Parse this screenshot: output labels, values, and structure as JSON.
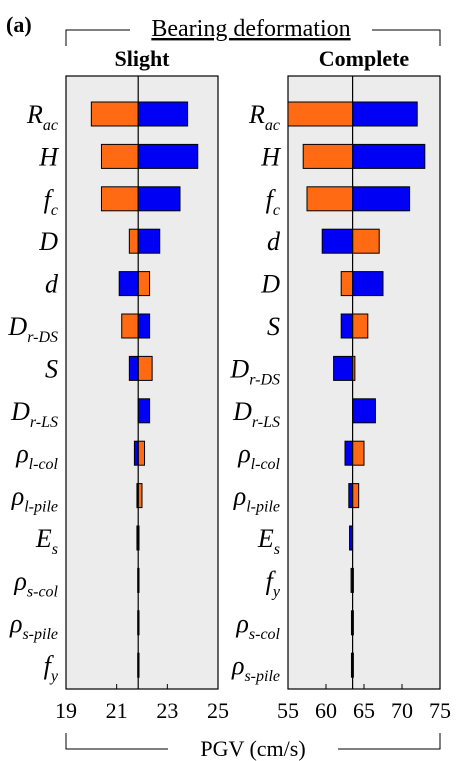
{
  "figure": {
    "panel_label": "(a)",
    "title": "Bearing deformation",
    "xlabel": "PGV (cm/s)"
  },
  "colors": {
    "low": "#ff6a13",
    "high": "#0000f5",
    "panel_bg": "#ececec",
    "outline": "#000000"
  },
  "chart_data": [
    {
      "type": "bar",
      "subtype": "tornado",
      "title": "Slight",
      "base": 21.85,
      "xlim": [
        19,
        25
      ],
      "xticks": [
        19,
        21,
        23,
        25
      ],
      "grid": false,
      "parameters": [
        {
          "name": "R",
          "sub": "ac",
          "low_side": "orange",
          "min": 20.0,
          "max": 23.8
        },
        {
          "name": "H",
          "sub": "",
          "low_side": "orange",
          "min": 20.4,
          "max": 24.2
        },
        {
          "name": "f",
          "sub": "c",
          "low_side": "orange",
          "min": 20.4,
          "max": 23.5
        },
        {
          "name": "D",
          "sub": "",
          "low_side": "orange",
          "min": 21.5,
          "max": 22.7
        },
        {
          "name": "d",
          "sub": "",
          "low_side": "blue",
          "min": 21.1,
          "max": 22.3
        },
        {
          "name": "D",
          "sub": "r-DS",
          "low_side": "orange",
          "min": 21.2,
          "max": 22.3
        },
        {
          "name": "S",
          "sub": "",
          "low_side": "blue",
          "min": 21.5,
          "max": 22.4
        },
        {
          "name": "D",
          "sub": "r-LS",
          "low_side": "orange",
          "min": 21.85,
          "max": 22.3
        },
        {
          "name": "ρ",
          "sub": "l-col",
          "low_side": "blue",
          "min": 21.7,
          "max": 22.1
        },
        {
          "name": "ρ",
          "sub": "l-pile",
          "low_side": "blue",
          "min": 21.8,
          "max": 22.0
        },
        {
          "name": "E",
          "sub": "s",
          "low_side": "blue",
          "min": 21.8,
          "max": 21.87
        },
        {
          "name": "ρ",
          "sub": "s-col",
          "low_side": "blue",
          "min": 21.83,
          "max": 21.86
        },
        {
          "name": "ρ",
          "sub": "s-pile",
          "low_side": "blue",
          "min": 21.83,
          "max": 21.86
        },
        {
          "name": "f",
          "sub": "y",
          "low_side": "blue",
          "min": 21.83,
          "max": 21.86
        }
      ]
    },
    {
      "type": "bar",
      "subtype": "tornado",
      "title": "Complete",
      "base": 63.5,
      "xlim": [
        55,
        75
      ],
      "xticks": [
        55,
        60,
        65,
        70,
        75
      ],
      "grid": false,
      "parameters": [
        {
          "name": "R",
          "sub": "ac",
          "low_side": "orange",
          "min": 55.0,
          "max": 72.0
        },
        {
          "name": "H",
          "sub": "",
          "low_side": "orange",
          "min": 57.0,
          "max": 73.0
        },
        {
          "name": "f",
          "sub": "c",
          "low_side": "orange",
          "min": 57.5,
          "max": 71.0
        },
        {
          "name": "d",
          "sub": "",
          "low_side": "blue",
          "min": 59.5,
          "max": 67.0
        },
        {
          "name": "D",
          "sub": "",
          "low_side": "orange",
          "min": 62.0,
          "max": 67.5
        },
        {
          "name": "S",
          "sub": "",
          "low_side": "blue",
          "min": 62.0,
          "max": 65.5
        },
        {
          "name": "D",
          "sub": "r-DS",
          "low_side": "blue",
          "min": 61.0,
          "max": 63.8
        },
        {
          "name": "D",
          "sub": "r-LS",
          "low_side": "orange",
          "min": 63.5,
          "max": 66.5
        },
        {
          "name": "ρ",
          "sub": "l-col",
          "low_side": "blue",
          "min": 62.5,
          "max": 65.0
        },
        {
          "name": "ρ",
          "sub": "l-pile",
          "low_side": "blue",
          "min": 63.0,
          "max": 64.3
        },
        {
          "name": "E",
          "sub": "s",
          "low_side": "blue",
          "min": 63.1,
          "max": 63.5
        },
        {
          "name": "f",
          "sub": "y",
          "low_side": "blue",
          "min": 63.3,
          "max": 63.6
        },
        {
          "name": "ρ",
          "sub": "s-col",
          "low_side": "blue",
          "min": 63.35,
          "max": 63.55
        },
        {
          "name": "ρ",
          "sub": "s-pile",
          "low_side": "blue",
          "min": 63.35,
          "max": 63.55
        }
      ]
    }
  ]
}
